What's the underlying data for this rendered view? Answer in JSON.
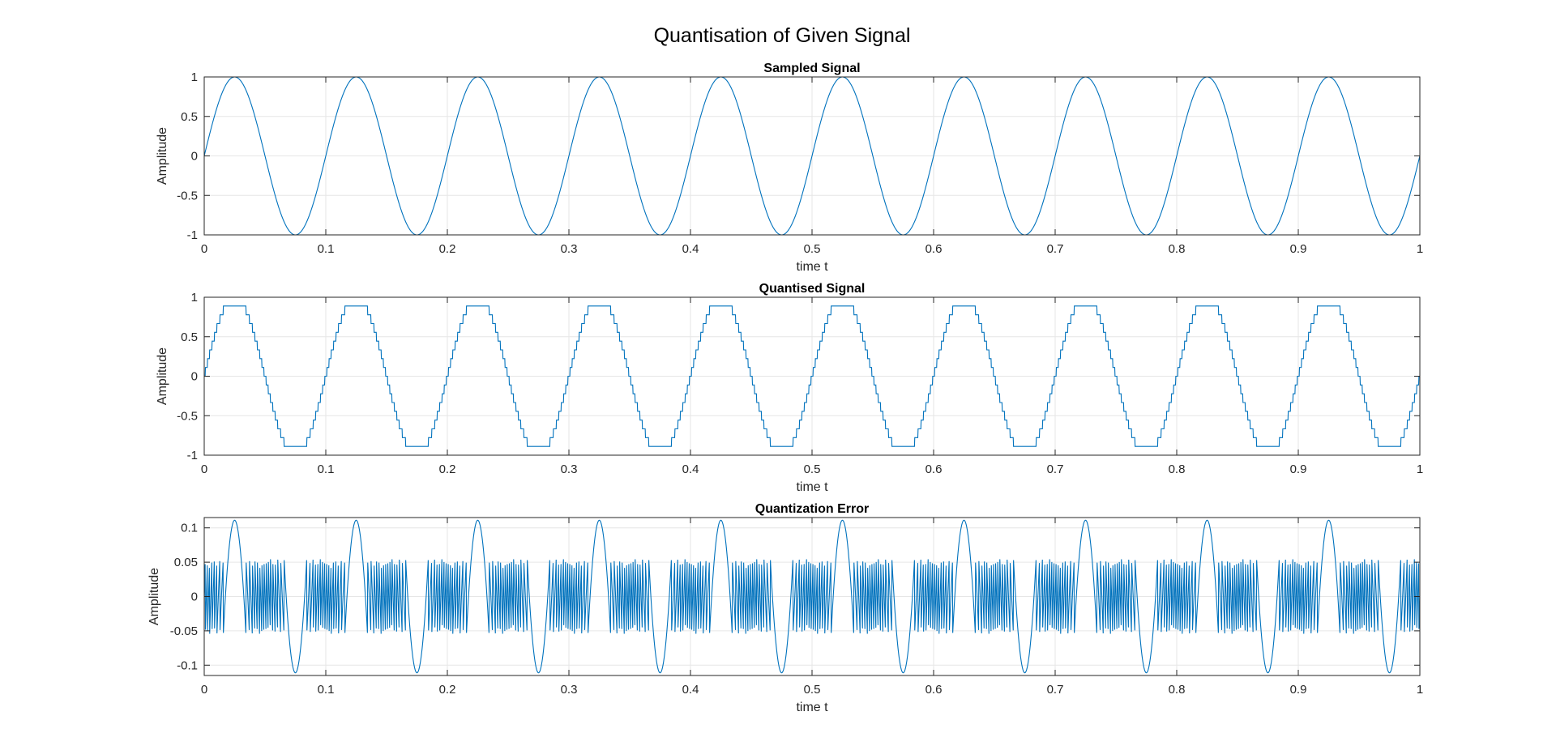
{
  "figure": {
    "title": "Quantisation of Given Signal"
  },
  "style": {
    "line_color": "#0072bd",
    "grid_color": "#e6e6e6",
    "axis_color": "#262626"
  },
  "chart_data": [
    {
      "type": "line",
      "title": "Sampled Signal",
      "xlabel": "time t",
      "ylabel": "Amplitude",
      "xlim": [
        0,
        1
      ],
      "ylim": [
        -1,
        1
      ],
      "xticks": [
        "0",
        "0.1",
        "0.2",
        "0.3",
        "0.4",
        "0.5",
        "0.6",
        "0.7",
        "0.8",
        "0.9",
        "1"
      ],
      "yticks": [
        "-1",
        "-0.5",
        "0",
        "0.5",
        "1"
      ],
      "ytick_values": [
        -1,
        -0.5,
        0,
        0.5,
        1
      ],
      "grid": true,
      "signal": {
        "function": "sine",
        "amplitude": 1,
        "frequency_hz": 10,
        "t_range": [
          0,
          1
        ]
      }
    },
    {
      "type": "line",
      "title": "Quantised Signal",
      "xlabel": "time t",
      "ylabel": "Amplitude",
      "xlim": [
        0,
        1
      ],
      "ylim": [
        -1,
        1
      ],
      "xticks": [
        "0",
        "0.1",
        "0.2",
        "0.3",
        "0.4",
        "0.5",
        "0.6",
        "0.7",
        "0.8",
        "0.9",
        "1"
      ],
      "yticks": [
        "-1",
        "-0.5",
        "0",
        "0.5",
        "1"
      ],
      "ytick_values": [
        -1,
        -0.5,
        0,
        0.5,
        1
      ],
      "grid": true,
      "signal": {
        "function": "quantised sine",
        "amplitude": 1,
        "frequency_hz": 10,
        "t_range": [
          0,
          1
        ],
        "step": 0.1111,
        "max_level": 0.8889
      }
    },
    {
      "type": "line",
      "title": "Quantization Error",
      "xlabel": "time t",
      "ylabel": "Amplitude",
      "xlim": [
        0,
        1
      ],
      "ylim": [
        -0.115,
        0.115
      ],
      "xticks": [
        "0",
        "0.1",
        "0.2",
        "0.3",
        "0.4",
        "0.5",
        "0.6",
        "0.7",
        "0.8",
        "0.9",
        "1"
      ],
      "yticks": [
        "-0.1",
        "-0.05",
        "0",
        "0.05",
        "0.1"
      ],
      "ytick_values": [
        -0.1,
        -0.05,
        0,
        0.05,
        0.1
      ],
      "grid": true,
      "signal": {
        "function": "sampled minus quantised",
        "frequency_hz": 10,
        "t_range": [
          0,
          1
        ],
        "step": 0.1111,
        "max_level": 0.8889
      }
    }
  ]
}
